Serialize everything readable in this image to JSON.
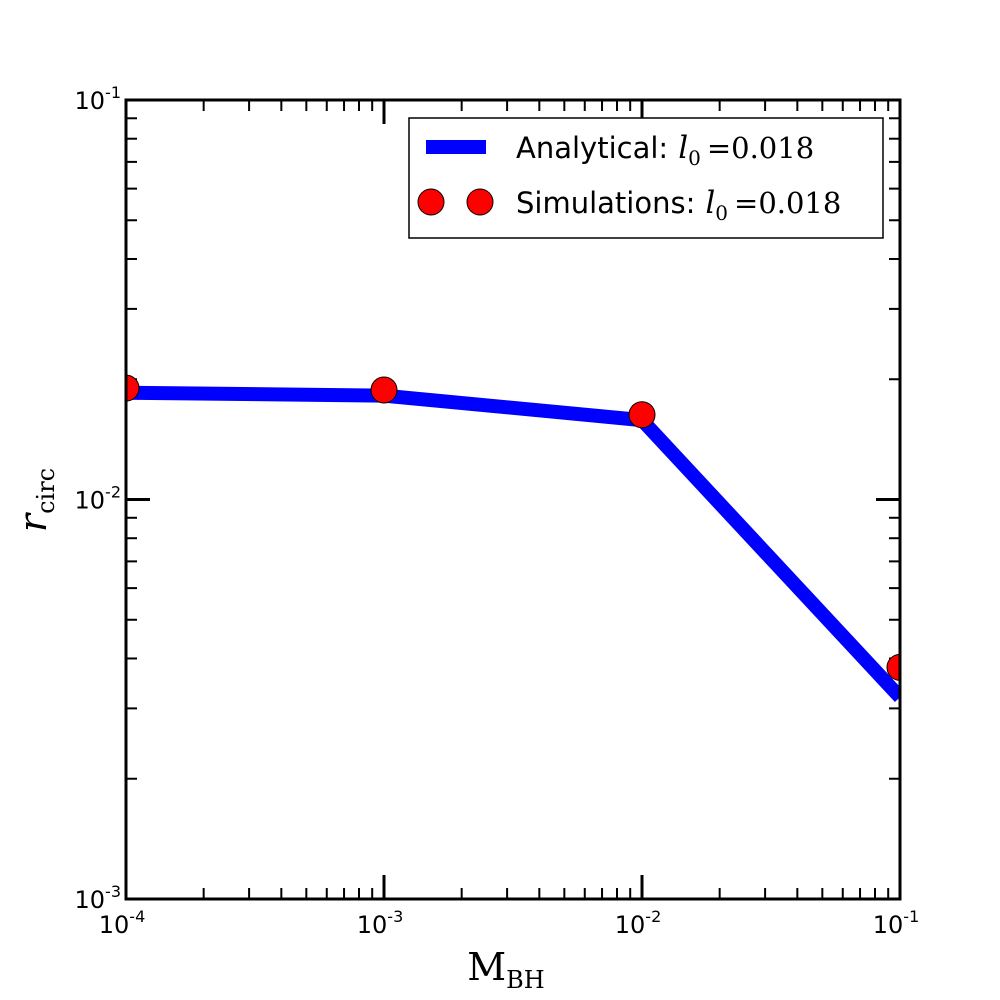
{
  "chart_data": {
    "type": "line",
    "xscale": "log",
    "yscale": "log",
    "xlim": [
      0.0001,
      0.1
    ],
    "ylim": [
      0.001,
      0.1
    ],
    "xlabel": {
      "main": "M",
      "sub": "BH"
    },
    "ylabel": {
      "main": "r",
      "sub": "circ"
    },
    "x_ticks": [
      {
        "base": "10",
        "exp": "-4"
      },
      {
        "base": "10",
        "exp": "-3"
      },
      {
        "base": "10",
        "exp": "-2"
      },
      {
        "base": "10",
        "exp": "-1"
      }
    ],
    "y_ticks": [
      {
        "base": "10",
        "exp": "-3"
      },
      {
        "base": "10",
        "exp": "-2"
      },
      {
        "base": "10",
        "exp": "-1"
      }
    ],
    "legend_position": "top-right",
    "series": [
      {
        "name": "Analytical:",
        "math_symbol": "l",
        "math_sub": "0",
        "math_value": "=0.018",
        "kind": "line",
        "color": "#0000ff",
        "x": [
          0.0001,
          0.001,
          0.01,
          0.1
        ],
        "y": [
          0.0185,
          0.0182,
          0.0158,
          0.0032
        ]
      },
      {
        "name": "Simulations:",
        "math_symbol": "l",
        "math_sub": "0",
        "math_value": "=0.018",
        "kind": "scatter",
        "color": "#ff0000",
        "x": [
          0.0001,
          0.001,
          0.01,
          0.1
        ],
        "y": [
          0.019,
          0.0188,
          0.0163,
          0.0038
        ]
      }
    ]
  }
}
